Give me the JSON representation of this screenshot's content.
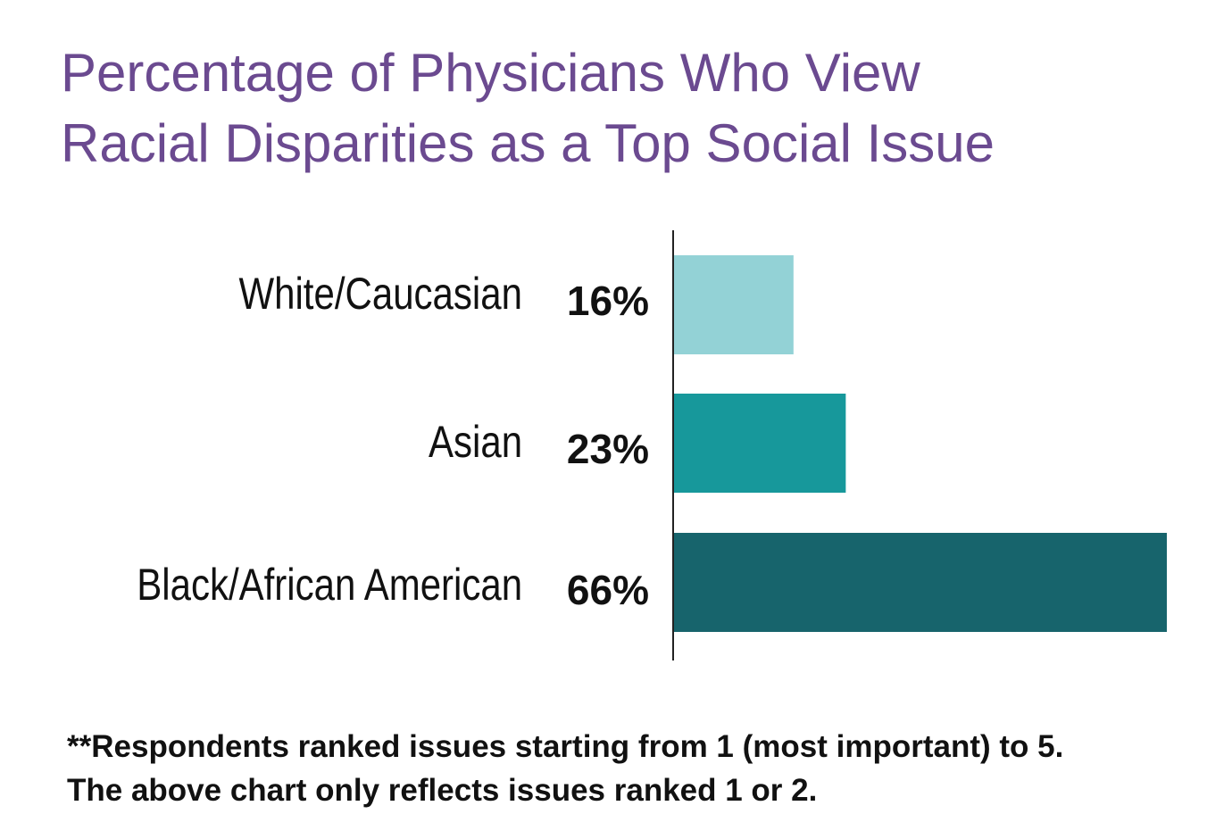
{
  "chart_data": {
    "type": "bar",
    "orientation": "horizontal",
    "title_lines": [
      "Percentage of Physicians Who View",
      "Racial Disparities as a Top Social Issue"
    ],
    "categories": [
      "White/Caucasian",
      "Asian",
      "Black/African American"
    ],
    "values": [
      16,
      23,
      66
    ],
    "value_labels": [
      "16%",
      "23%",
      "66%"
    ],
    "colors": [
      "#93d2d6",
      "#17989b",
      "#17646c"
    ],
    "xlim": [
      0,
      66
    ],
    "grid": false,
    "legend": "none",
    "footnote_lines": [
      "**Respondents ranked issues starting from 1 (most important) to 5.",
      "The above chart only reflects issues ranked 1 or 2."
    ]
  }
}
